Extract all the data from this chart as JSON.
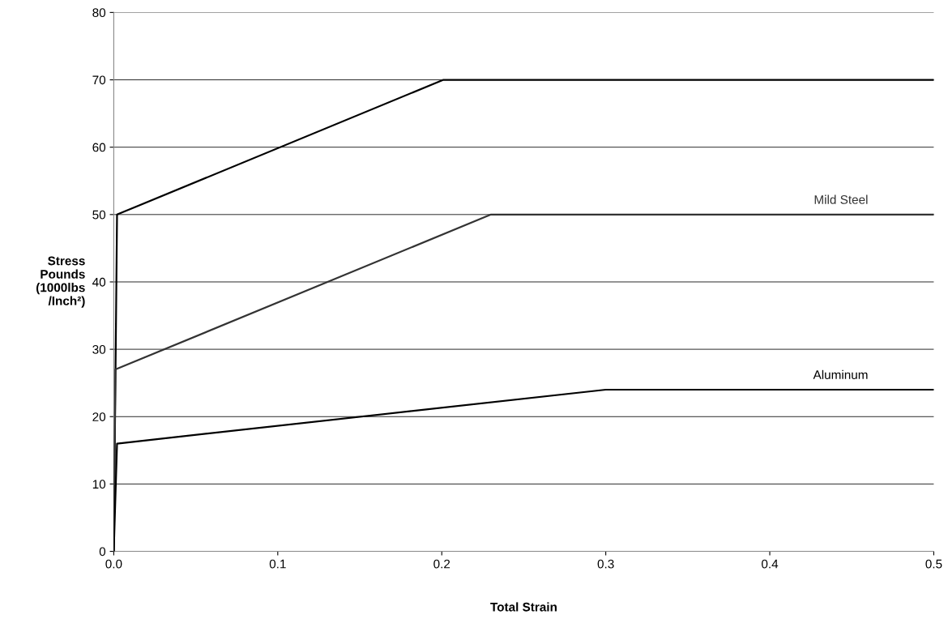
{
  "chart_data": {
    "type": "line",
    "xlabel": "Total Strain",
    "ylabel": "Stress\nPounds\n(1000lbs\n/Inch²)",
    "series": [
      {
        "color": "#000000",
        "x": [
          0,
          0.002,
          0.201,
          0.5
        ],
        "values": [
          0,
          50,
          70,
          70
        ]
      },
      {
        "name": "Mild Steel",
        "color": "#333333",
        "x": [
          0,
          0.001,
          0.23,
          0.5
        ],
        "values": [
          0,
          27,
          50,
          50
        ]
      },
      {
        "name": "Aluminum",
        "color": "#000000",
        "x": [
          0,
          0.002,
          0.3,
          0.5
        ],
        "values": [
          0,
          16,
          24,
          24
        ]
      }
    ],
    "xlim": [
      0,
      0.5
    ],
    "xticks": [
      {
        "value": 0,
        "label": "0.0"
      },
      0.1,
      0.2,
      0.3,
      0.4,
      0.5
    ],
    "ylim": [
      0,
      80
    ],
    "yticks": [
      0,
      10,
      20,
      30,
      40,
      50,
      60,
      70,
      80
    ],
    "grid": "y",
    "legend": false,
    "marker": "none",
    "line_style": "solid"
  }
}
